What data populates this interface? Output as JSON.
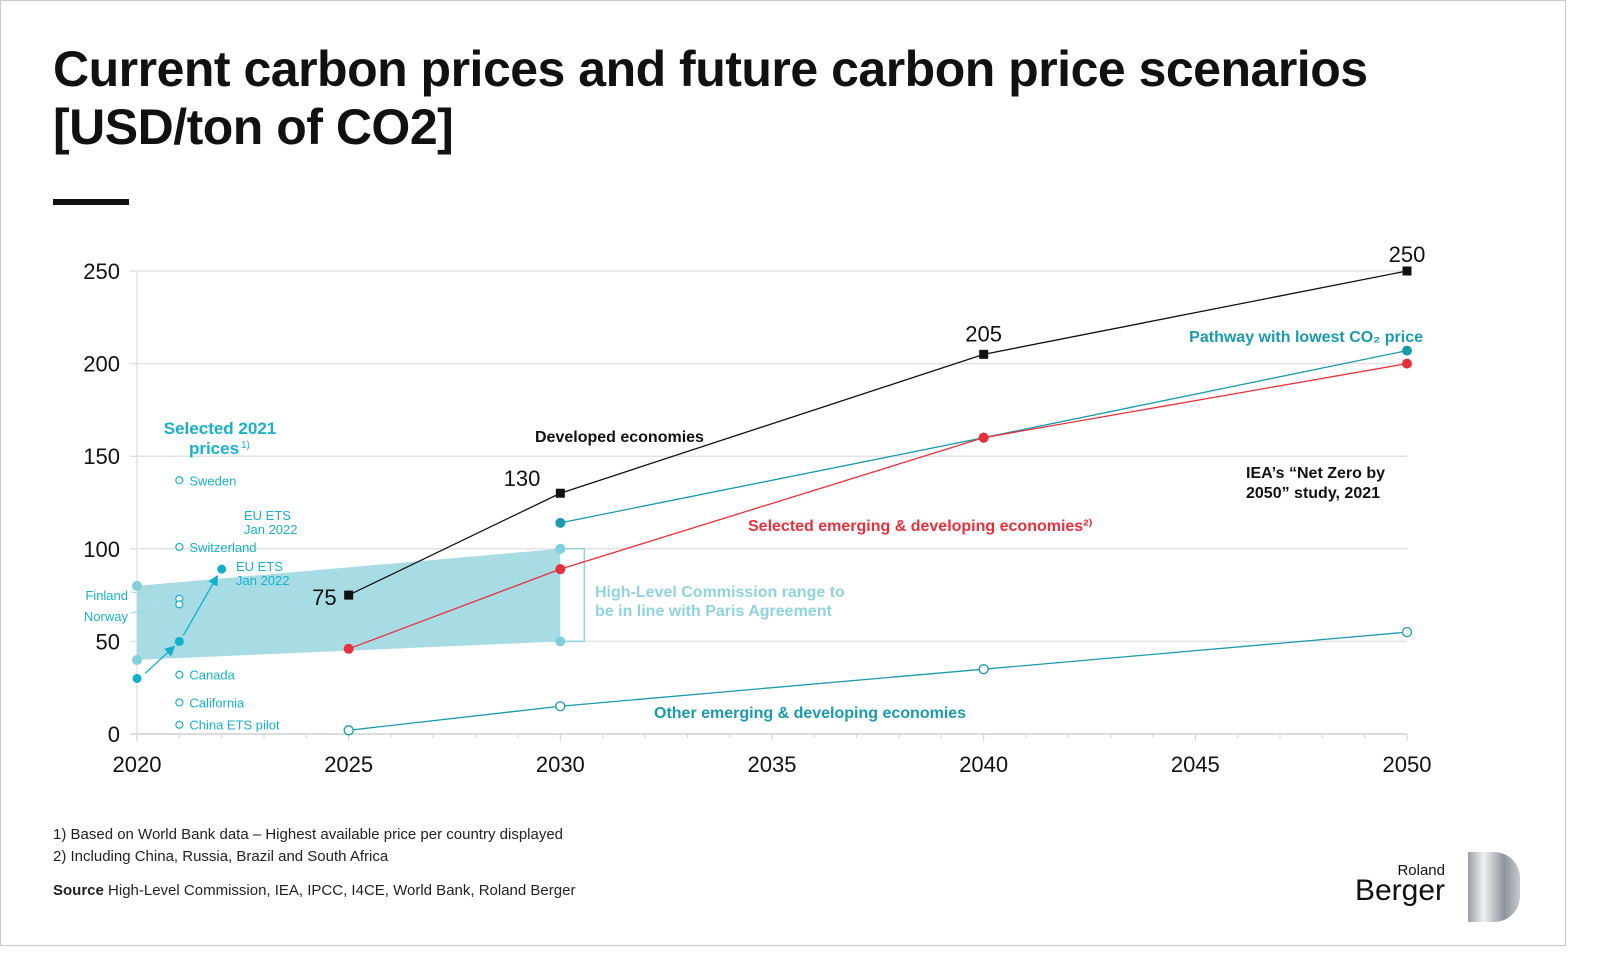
{
  "title": "Current carbon prices and future carbon price scenarios [USD/ton of CO2]",
  "notes": [
    "1) Based on World Bank data – Highest available price per country displayed",
    "2) Including China, Russia, Brazil and South Africa"
  ],
  "source_label": "Source",
  "source_text": "High-Level Commission, IEA, IPCC, I4CE, World Bank, Roland Berger",
  "logo": {
    "line1": "Roland",
    "line2": "Berger"
  },
  "chart_data": {
    "type": "line",
    "xlim": [
      2020,
      2050
    ],
    "ylim": [
      0,
      250
    ],
    "x_ticks": [
      2020,
      2025,
      2030,
      2035,
      2040,
      2045,
      2050
    ],
    "y_ticks": [
      0,
      50,
      100,
      150,
      200,
      250
    ],
    "grid": "horizontal",
    "series": [
      {
        "name": "Developed economies",
        "color": "#111111",
        "marker": "square",
        "x": [
          2025,
          2030,
          2040,
          2050
        ],
        "y": [
          75,
          130,
          205,
          250
        ],
        "labels": [
          "75",
          "130",
          "205",
          "250"
        ]
      },
      {
        "name": "Pathway with lowest CO₂ price",
        "color": "#1a9aad",
        "marker": "filled-circle",
        "x": [
          2030,
          2040,
          2050
        ],
        "y": [
          114,
          160,
          207
        ]
      },
      {
        "name": "Selected emerging & developing economies²⁾",
        "color": "#e8303a",
        "marker": "filled-circle",
        "x": [
          2025,
          2030,
          2040,
          2050
        ],
        "y": [
          46,
          89,
          160,
          200
        ]
      },
      {
        "name": "Other emerging & developing economies",
        "color": "#1a9aad",
        "marker": "open-circle",
        "x": [
          2025,
          2030,
          2040,
          2050
        ],
        "y": [
          2,
          15,
          35,
          55
        ]
      }
    ],
    "band": {
      "name": "High-Level Commission range to be in line with Paris Agreement",
      "color": "#a8dce4",
      "x": [
        2020,
        2030
      ],
      "low": [
        40,
        50
      ],
      "high": [
        80,
        100
      ]
    },
    "iea_label": "IEA's “Net Zero by 2050” study, 2021",
    "prices_2021": {
      "title": "Selected 2021 prices",
      "footnote": "1)",
      "color": "#19b0cc",
      "points": [
        {
          "label": "Sweden",
          "y": 137
        },
        {
          "label": "Switzerland",
          "y": 101
        },
        {
          "label": "Finland",
          "y": 73
        },
        {
          "label": "Norway",
          "y": 70
        },
        {
          "label": "Canada",
          "y": 32
        },
        {
          "label": "California",
          "y": 17
        },
        {
          "label": "China ETS pilot",
          "y": 5
        }
      ]
    },
    "eu_ets": {
      "label": "EU ETS Jan 2022",
      "label_line1": "EU ETS",
      "label_line2": "Jan 2022",
      "x": [
        2020,
        2021,
        2022
      ],
      "y": [
        30,
        50,
        89
      ]
    }
  }
}
